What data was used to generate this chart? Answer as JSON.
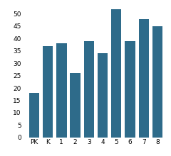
{
  "categories": [
    "PK",
    "K",
    "1",
    "2",
    "3",
    "4",
    "5",
    "6",
    "7",
    "8"
  ],
  "values": [
    18,
    37,
    38,
    26,
    39,
    34,
    52,
    39,
    48,
    45
  ],
  "bar_color": "#2e6b8a",
  "ylim": [
    0,
    55
  ],
  "yticks": [
    0,
    5,
    10,
    15,
    20,
    25,
    30,
    35,
    40,
    45,
    50
  ],
  "background_color": "#ffffff",
  "tick_fontsize": 6.5,
  "bar_width": 0.75
}
